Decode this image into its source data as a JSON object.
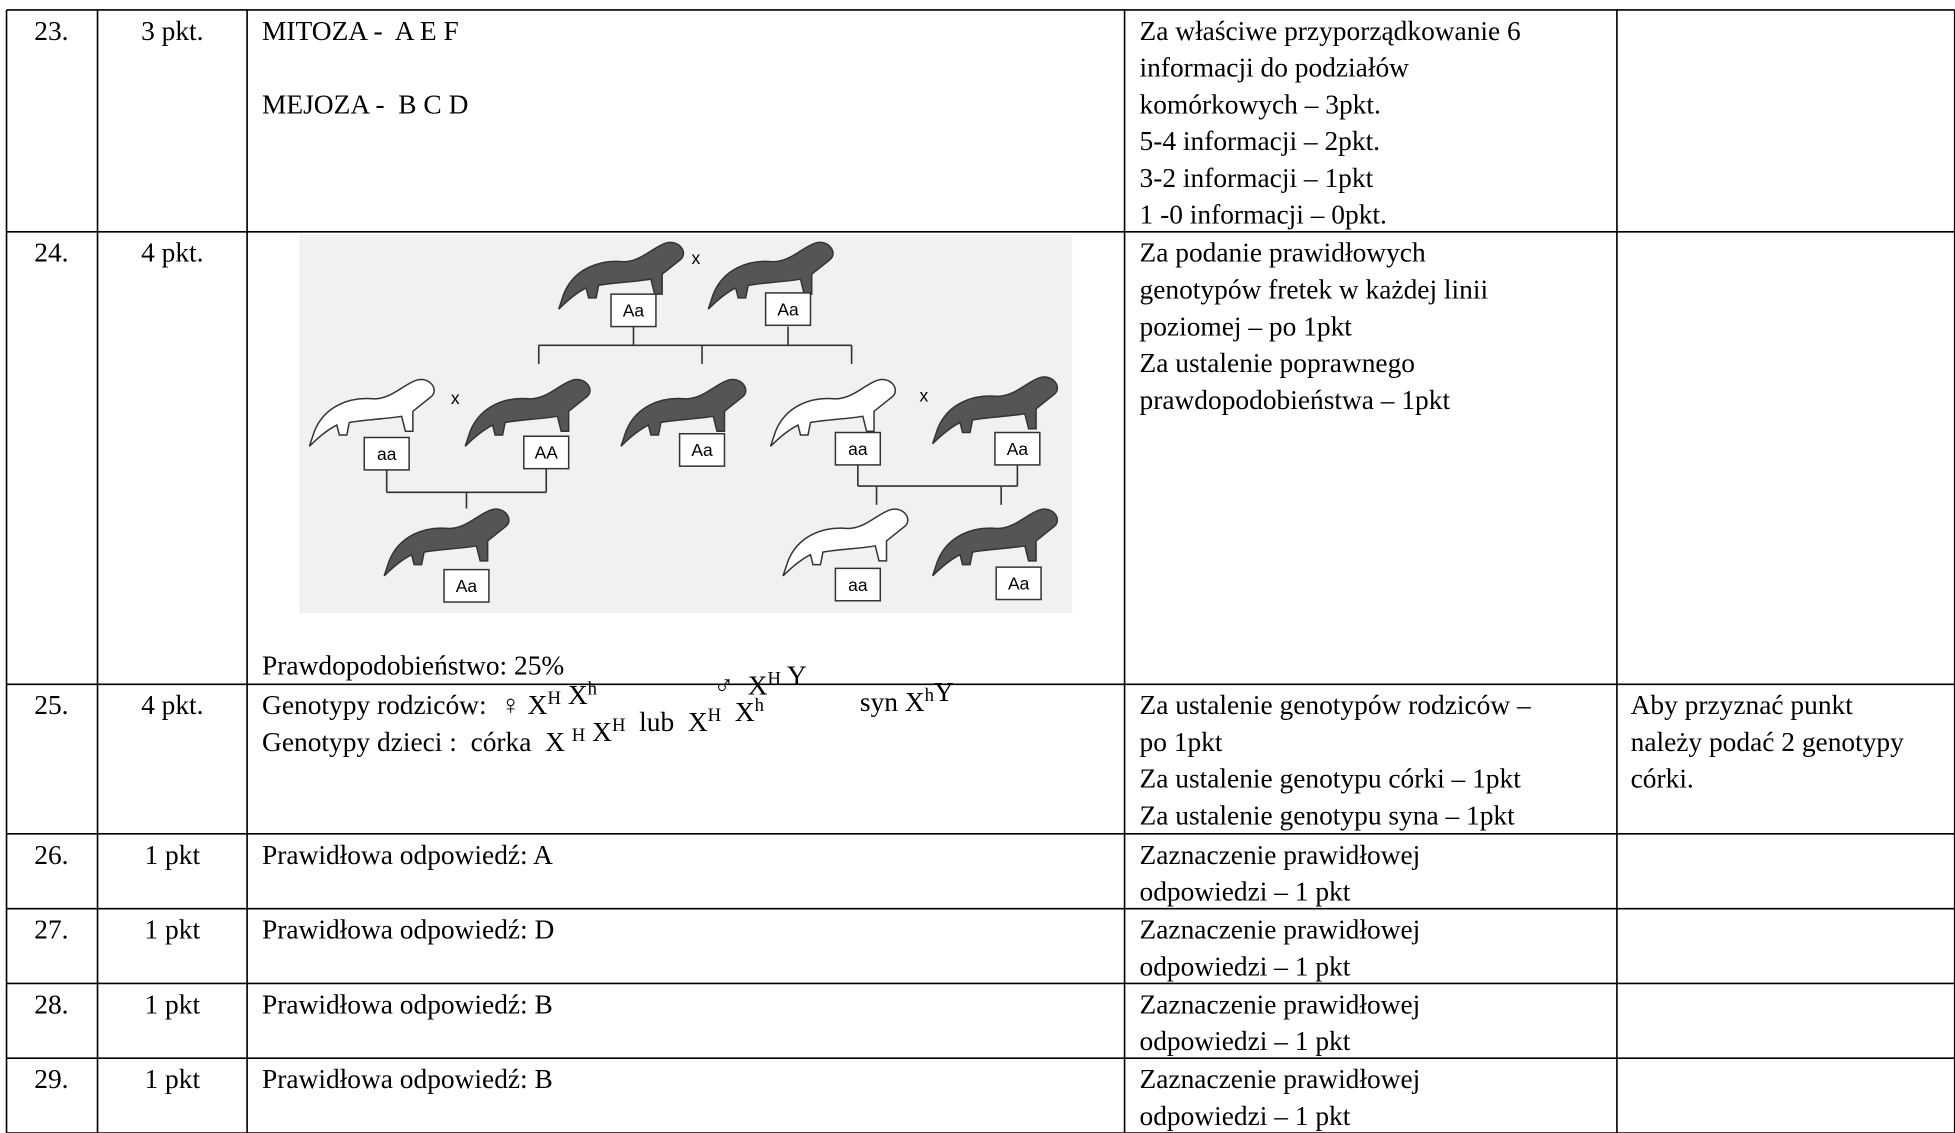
{
  "rows": [
    {
      "number": "23.",
      "points": "3 pkt.",
      "answer": [
        "MITOZA -  A E F",
        "MEJOZA -  B C D"
      ],
      "criteria": [
        "Za właściwe przyporządkowanie 6",
        "informacji do podziałów",
        "komórkowych – 3pkt.",
        "5-4 informacji – 2pkt.",
        "3-2 informacji – 1pkt",
        "1 -0 informacji – 0pkt."
      ]
    },
    {
      "number": "24.",
      "points": "4 pkt.",
      "diagram": {
        "labels": [
          "Aa",
          "Aa",
          "aa",
          "AA",
          "Aa",
          "aa",
          "Aa",
          "Aa",
          "aa",
          "Aa"
        ],
        "crosses": [
          "x",
          "x",
          "x"
        ]
      },
      "answer": [
        "Prawdopodobieństwo: 25%"
      ],
      "criteria": [
        "Za podanie prawidłowych",
        "genotypów fretek w każdej linii",
        "poziomej – po 1pkt",
        "Za ustalenie poprawnego",
        "prawdopodobieństwa – 1pkt"
      ]
    },
    {
      "number": "25.",
      "points": "4 pkt.",
      "answer": [
        [
          {
            "text": "Genotypy rodziców:  ♀ X"
          },
          {
            "sup": "H"
          },
          {
            "text": " X"
          },
          {
            "sup": "h"
          },
          {
            "text": "                 ♂  X"
          },
          {
            "sup": "H"
          },
          {
            "text": " Y"
          }
        ],
        [
          {
            "text": "Genotypy dzieci :  córka  X "
          },
          {
            "sup": "H"
          },
          {
            "text": " X"
          },
          {
            "sup": "H"
          },
          {
            "text": "  lub  X"
          },
          {
            "sup": "H"
          },
          {
            "text": "  X"
          },
          {
            "sup": "h"
          },
          {
            "text": "              syn X"
          },
          {
            "sup": "h"
          },
          {
            "text": "Y"
          }
        ]
      ],
      "criteria": [
        "Za ustalenie genotypów rodziców –",
        "po 1pkt",
        "Za ustalenie genotypu córki – 1pkt",
        "Za ustalenie genotypu syna – 1pkt"
      ],
      "note": [
        "Aby przyznać punkt",
        "należy podać 2 genotypy",
        "córki."
      ]
    },
    {
      "number": "26.",
      "points": "1 pkt",
      "answer": [
        "Prawidłowa odpowiedź: A"
      ],
      "criteria": [
        "Zaznaczenie prawidłowej",
        "odpowiedzi – 1 pkt"
      ]
    },
    {
      "number": "27.",
      "points": "1 pkt",
      "answer": [
        "Prawidłowa odpowiedź: D"
      ],
      "criteria": [
        "Zaznaczenie prawidłowej",
        "odpowiedzi – 1 pkt"
      ]
    },
    {
      "number": "28.",
      "points": "1 pkt",
      "answer": [
        "Prawidłowa odpowiedź: B"
      ],
      "criteria": [
        "Zaznaczenie prawidłowej",
        "odpowiedzi – 1 pkt"
      ]
    },
    {
      "number": "29.",
      "points": "1 pkt",
      "answer": [
        "Prawidłowa odpowiedź: B"
      ],
      "criteria": [
        "Zaznaczenie prawidłowej",
        "odpowiedzi – 1 pkt"
      ]
    }
  ]
}
